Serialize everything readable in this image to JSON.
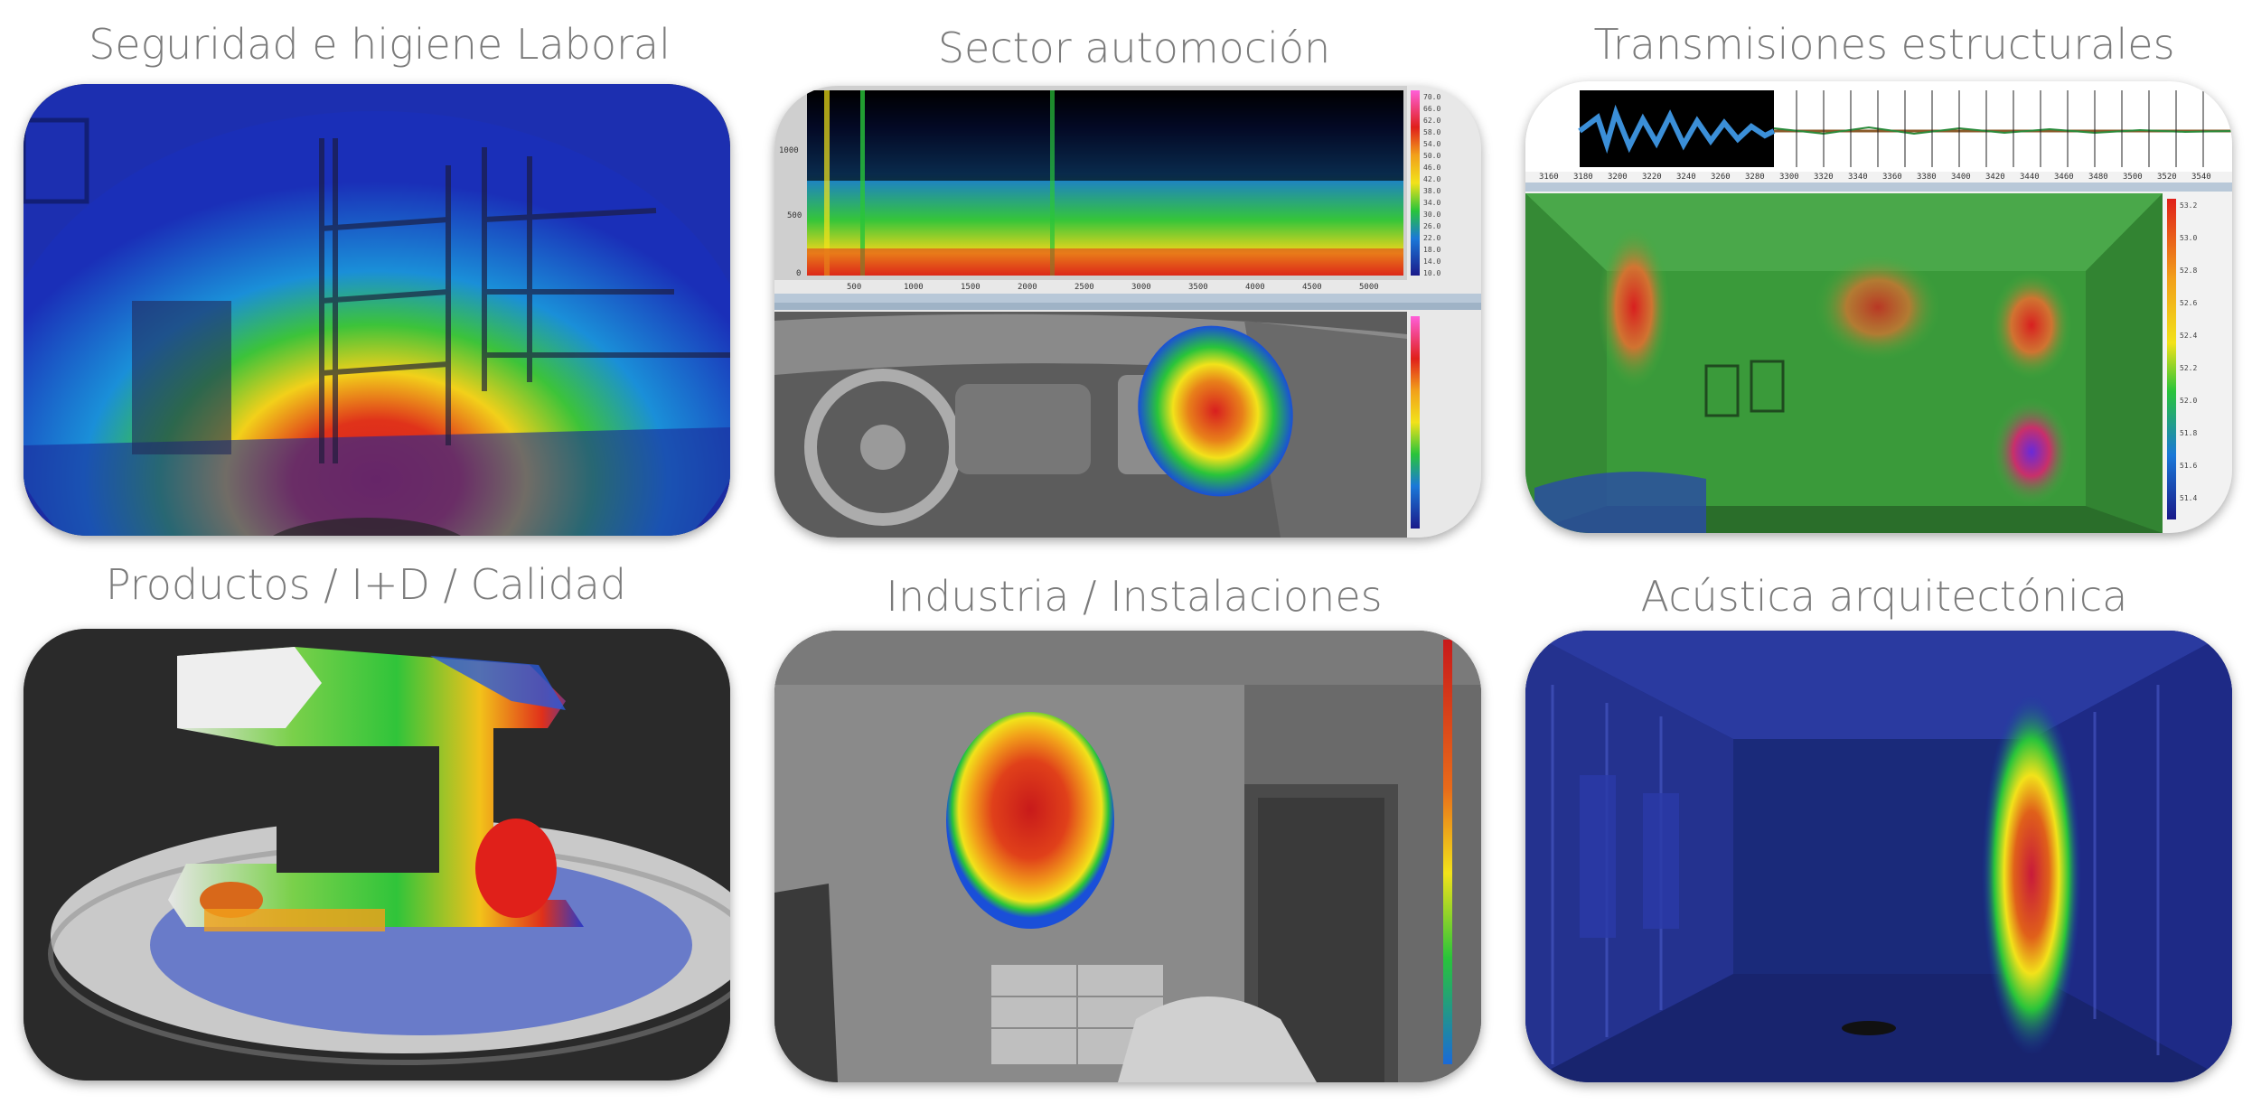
{
  "tiles": [
    {
      "title": "Seguridad e higiene Laboral",
      "scene": "workshop-acoustic-heatmap"
    },
    {
      "title": "Sector automoción",
      "scene": "car-interior-spectrogram-heatmap"
    },
    {
      "title": "Transmisiones estructurales",
      "scene": "room-waveform-heatmap"
    },
    {
      "title": "Productos / I+D / Calidad",
      "scene": "sewing-machine-3d-heatmap"
    },
    {
      "title": "Industria / Instalaciones",
      "scene": "bedroom-heatmap"
    },
    {
      "title": "Acústica arquitectónica",
      "scene": "corridor-heatmap"
    }
  ],
  "spectrogram": {
    "y_ticks": [
      "1000",
      "500",
      "0"
    ],
    "x_ticks": [
      "500",
      "1000",
      "1500",
      "2000",
      "2500",
      "3000",
      "3500",
      "4000",
      "4500",
      "5000"
    ],
    "legend_ticks": [
      "70.0",
      "66.0",
      "62.0",
      "58.0",
      "54.0",
      "50.0",
      "46.0",
      "42.0",
      "38.0",
      "34.0",
      "30.0",
      "26.0",
      "22.0",
      "18.0",
      "14.0",
      "10.0"
    ]
  },
  "waveform": {
    "x_ticks": [
      "3160",
      "3180",
      "3200",
      "3220",
      "3240",
      "3260",
      "3280",
      "3300",
      "3320",
      "3340",
      "3360",
      "3380",
      "3400",
      "3420",
      "3440",
      "3460",
      "3480",
      "3500",
      "3520",
      "3540"
    ],
    "legend_ticks": [
      "53.2",
      "53.0",
      "52.8",
      "52.6",
      "52.4",
      "52.2",
      "52.0",
      "51.8",
      "51.6",
      "51.4"
    ]
  },
  "colors": {
    "title": "#7b7b7b",
    "heat_red": "#e0201a",
    "heat_yellow": "#f2e21a",
    "heat_green": "#29c43a",
    "heat_blue": "#1a3fd8"
  }
}
